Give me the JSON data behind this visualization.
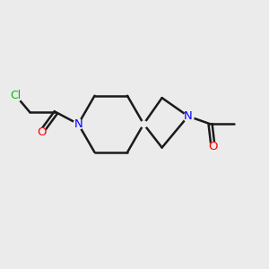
{
  "background_color": "#ebebeb",
  "bond_color": "#1a1a1a",
  "N_color": "#0000ff",
  "O_color": "#ff0000",
  "Cl_color": "#00bb00",
  "line_width": 1.8,
  "fig_width": 3.0,
  "fig_height": 3.0,
  "dpi": 100,
  "xlim": [
    0,
    10
  ],
  "ylim": [
    0,
    10
  ]
}
